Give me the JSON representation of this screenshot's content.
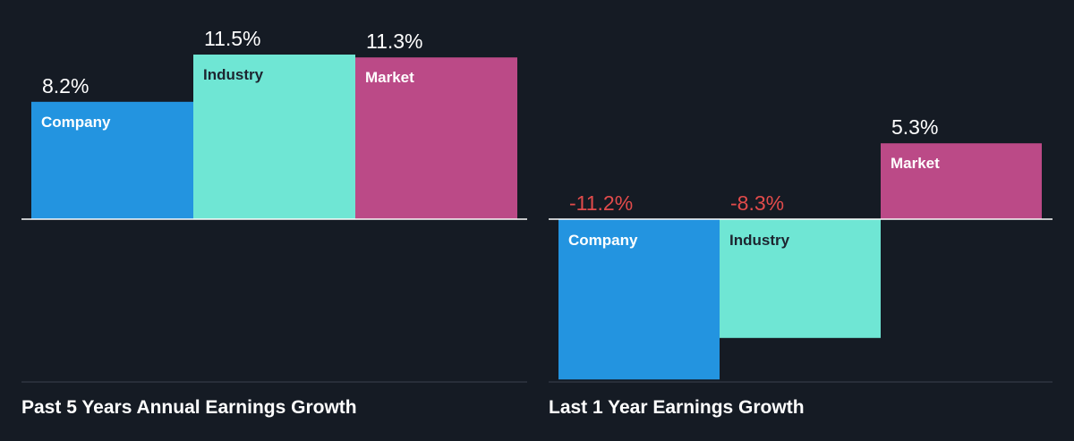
{
  "chart_data": [
    {
      "type": "bar",
      "title": "Past 5 Years Annual Earnings Growth",
      "categories": [
        "Company",
        "Industry",
        "Market"
      ],
      "values": [
        8.2,
        11.5,
        11.3
      ],
      "value_labels": [
        "8.2%",
        "11.5%",
        "11.3%"
      ],
      "unit": "%",
      "colors": [
        "#2394e0",
        "#6fe6d4",
        "#bb4a87"
      ],
      "grid": false,
      "legend": "none (labels inside bars)"
    },
    {
      "type": "bar",
      "title": "Last 1 Year Earnings Growth",
      "categories": [
        "Company",
        "Industry",
        "Market"
      ],
      "values": [
        -11.2,
        -8.3,
        5.3
      ],
      "value_labels": [
        "-11.2%",
        "-8.3%",
        "5.3%"
      ],
      "unit": "%",
      "colors": [
        "#2394e0",
        "#6fe6d4",
        "#bb4a87"
      ],
      "grid": false,
      "legend": "none (labels inside bars)"
    }
  ],
  "theme": {
    "background": "#151b24",
    "positive_label_color": "#ffffff",
    "negative_label_color": "#e24b4b",
    "dark_label_color": "#1d2530",
    "light_label_color": "#ffffff",
    "axis_color": "#ffffff",
    "baseline_color": "#3a424e"
  }
}
